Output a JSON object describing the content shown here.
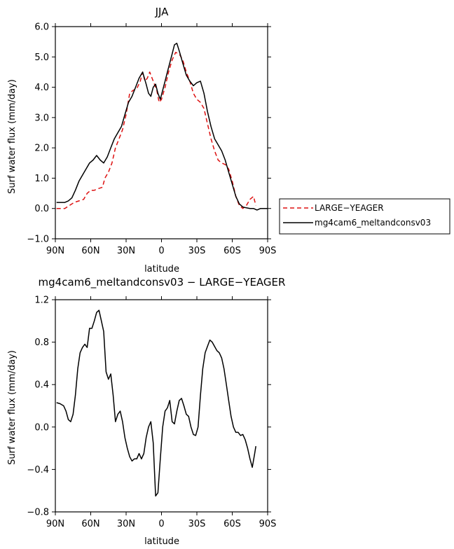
{
  "colors": {
    "black": "#000000",
    "red": "#dd1111"
  },
  "chart_data": [
    {
      "type": "line",
      "title": "JJA",
      "xlabel": "latitude",
      "ylabel": "Surf water flux (mm/day)",
      "xlim": [
        90,
        -90
      ],
      "ylim": [
        -1.0,
        6.0
      ],
      "xtick_values": [
        90,
        60,
        30,
        0,
        -30,
        -60,
        -90
      ],
      "xtick_labels": [
        "90N",
        "60N",
        "30N",
        "0",
        "30S",
        "60S",
        "90S"
      ],
      "ytick_values": [
        -1,
        0,
        1,
        2,
        3,
        4,
        5,
        6
      ],
      "ytick_labels": [
        "−1.0",
        "0.0",
        "1.0",
        "2.0",
        "3.0",
        "4.0",
        "5.0",
        "6.0"
      ],
      "legend": {
        "position": "right",
        "entries": [
          "LARGE−YEAGER",
          "mg4cam6_meltandconsv03"
        ]
      },
      "series": [
        {
          "name": "LARGE−YEAGER",
          "color": "#dd1111",
          "style": "dashed",
          "x": [
            89,
            85,
            82,
            78,
            74,
            70,
            66,
            63,
            60,
            57,
            54,
            50,
            48,
            45,
            42,
            39,
            36,
            33,
            30,
            27,
            24,
            21,
            18,
            16,
            14,
            12,
            10,
            7,
            4,
            2,
            0,
            -3,
            -6,
            -9,
            -12,
            -15,
            -18,
            -21,
            -24,
            -27,
            -30,
            -33,
            -36,
            -39,
            -42,
            -45,
            -48,
            -51,
            -54,
            -57,
            -60,
            -63,
            -66,
            -69,
            -72,
            -75,
            -78,
            -80
          ],
          "y": [
            0.0,
            0.0,
            0.0,
            0.1,
            0.2,
            0.25,
            0.3,
            0.5,
            0.6,
            0.6,
            0.65,
            0.7,
            1.0,
            1.2,
            1.5,
            2.0,
            2.3,
            2.6,
            3.1,
            3.8,
            3.9,
            3.95,
            4.2,
            4.5,
            4.2,
            4.3,
            4.5,
            4.2,
            3.9,
            3.5,
            3.6,
            4.0,
            4.5,
            4.9,
            5.15,
            5.1,
            4.9,
            4.5,
            4.2,
            3.8,
            3.6,
            3.5,
            3.3,
            2.8,
            2.3,
            1.9,
            1.6,
            1.5,
            1.45,
            1.3,
            0.9,
            0.4,
            0.1,
            0.0,
            0.1,
            0.3,
            0.4,
            0.1
          ]
        },
        {
          "name": "mg4cam6_meltandconsv03",
          "color": "#000000",
          "style": "solid",
          "x": [
            89,
            85,
            82,
            79,
            76,
            73,
            70,
            67,
            64,
            61,
            58,
            55,
            52,
            49,
            46,
            43,
            40,
            37,
            34,
            31,
            28,
            25,
            22,
            19,
            16,
            13,
            11,
            9,
            7,
            5,
            3,
            1,
            -1,
            -3,
            -5,
            -7,
            -9,
            -11,
            -13,
            -15,
            -18,
            -21,
            -24,
            -27,
            -30,
            -33,
            -36,
            -39,
            -42,
            -45,
            -48,
            -51,
            -54,
            -57,
            -60,
            -63,
            -66,
            -69,
            -72,
            -75,
            -78,
            -81,
            -84,
            -87,
            -90
          ],
          "y": [
            0.2,
            0.2,
            0.2,
            0.25,
            0.35,
            0.6,
            0.9,
            1.1,
            1.3,
            1.5,
            1.6,
            1.75,
            1.6,
            1.5,
            1.7,
            2.0,
            2.3,
            2.5,
            2.7,
            3.1,
            3.5,
            3.7,
            4.0,
            4.3,
            4.5,
            4.1,
            3.8,
            3.7,
            4.0,
            4.1,
            3.8,
            3.6,
            3.9,
            4.2,
            4.5,
            4.8,
            5.1,
            5.4,
            5.45,
            5.2,
            4.8,
            4.4,
            4.2,
            4.05,
            4.15,
            4.2,
            3.8,
            3.2,
            2.7,
            2.3,
            2.1,
            1.9,
            1.6,
            1.2,
            0.8,
            0.4,
            0.15,
            0.05,
            0.02,
            0.0,
            0.0,
            -0.05,
            0.0,
            0.0,
            0.0
          ]
        }
      ]
    },
    {
      "type": "line",
      "title": "mg4cam6_meltandconsv03 − LARGE−YEAGER",
      "xlabel": "latitude",
      "ylabel": "Surf water flux (mm/day)",
      "xlim": [
        90,
        -90
      ],
      "ylim": [
        -0.8,
        1.2
      ],
      "xtick_values": [
        90,
        60,
        30,
        0,
        -30,
        -60,
        -90
      ],
      "xtick_labels": [
        "90N",
        "60N",
        "30N",
        "0",
        "30S",
        "60S",
        "90S"
      ],
      "ytick_values": [
        -0.8,
        -0.4,
        0.0,
        0.4,
        0.8,
        1.2
      ],
      "ytick_labels": [
        "−0.8",
        "−0.4",
        "0.0",
        "0.4",
        "0.8",
        "1.2"
      ],
      "series": [
        {
          "name": "",
          "color": "#000000",
          "style": "solid",
          "x": [
            89,
            86,
            83,
            81,
            79,
            77,
            75,
            73,
            71,
            69,
            67,
            65,
            63,
            61,
            59,
            57,
            55,
            53,
            51,
            49,
            47,
            45,
            43,
            41,
            39,
            37,
            35,
            33,
            31,
            29,
            27,
            25,
            23,
            21,
            19,
            17,
            15,
            13,
            11,
            9,
            7,
            5,
            3,
            1,
            -1,
            -3,
            -5,
            -7,
            -9,
            -11,
            -13,
            -15,
            -17,
            -19,
            -21,
            -23,
            -25,
            -27,
            -29,
            -31,
            -33,
            -35,
            -37,
            -39,
            -41,
            -43,
            -45,
            -47,
            -49,
            -51,
            -53,
            -55,
            -57,
            -59,
            -61,
            -63,
            -65,
            -67,
            -69,
            -71,
            -73,
            -75,
            -77,
            -79,
            -80
          ],
          "y": [
            0.23,
            0.22,
            0.2,
            0.15,
            0.07,
            0.05,
            0.12,
            0.3,
            0.55,
            0.7,
            0.75,
            0.78,
            0.75,
            0.93,
            0.93,
            1.0,
            1.08,
            1.1,
            1.0,
            0.9,
            0.52,
            0.45,
            0.5,
            0.3,
            0.05,
            0.12,
            0.15,
            0.05,
            -0.1,
            -0.2,
            -0.28,
            -0.32,
            -0.3,
            -0.3,
            -0.25,
            -0.3,
            -0.25,
            -0.1,
            0.0,
            0.05,
            -0.15,
            -0.65,
            -0.62,
            -0.3,
            0.0,
            0.15,
            0.18,
            0.25,
            0.05,
            0.03,
            0.15,
            0.25,
            0.27,
            0.2,
            0.12,
            0.1,
            0.0,
            -0.07,
            -0.08,
            0.0,
            0.3,
            0.55,
            0.7,
            0.76,
            0.82,
            0.8,
            0.76,
            0.72,
            0.7,
            0.65,
            0.55,
            0.4,
            0.25,
            0.1,
            0.0,
            -0.05,
            -0.05,
            -0.08,
            -0.07,
            -0.12,
            -0.2,
            -0.3,
            -0.38,
            -0.25,
            -0.18
          ]
        }
      ]
    }
  ]
}
